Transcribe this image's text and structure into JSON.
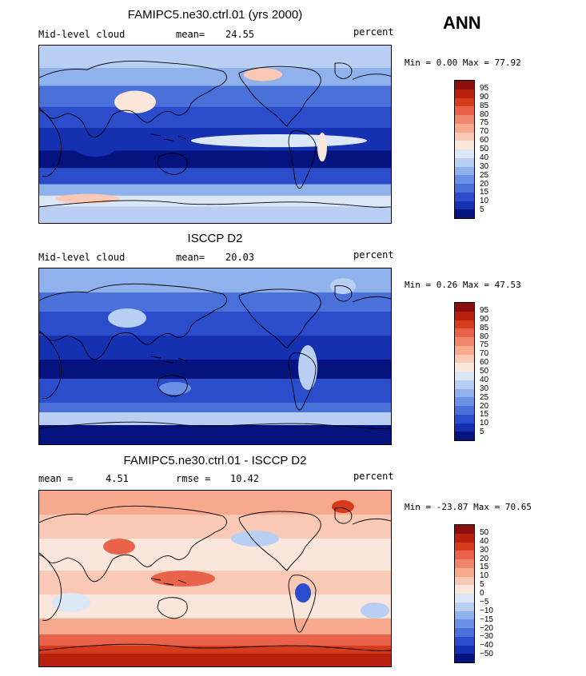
{
  "season": "ANN",
  "panels": [
    {
      "title": "FAMIPC5.ne30.ctrl.01 (yrs 2000)",
      "left_label": "Mid-level cloud",
      "stat_label": "mean=",
      "stat_value": "24.55",
      "unit": "percent",
      "minmax": "Min =    0.00 Max =   77.92",
      "colorbar_labels": [
        "95",
        "90",
        "85",
        "80",
        "75",
        "70",
        "60",
        "50",
        "40",
        "30",
        "25",
        "20",
        "15",
        "10",
        "5"
      ],
      "colorbar_colors": [
        "#8b0d0d",
        "#b8210e",
        "#d63b1c",
        "#e8634a",
        "#f0876a",
        "#f6a98d",
        "#fac9b6",
        "#fbe6dc",
        "#dbe7f7",
        "#b8cff3",
        "#8fb1ec",
        "#6b91e6",
        "#4a70da",
        "#2b4ccb",
        "#1530b0",
        "#04137e"
      ],
      "map_kind": "model"
    },
    {
      "title": "ISCCP D2",
      "left_label": "Mid-level cloud",
      "stat_label": "mean=",
      "stat_value": "20.03",
      "unit": "percent",
      "minmax": "Min =    0.26 Max =   47.53",
      "colorbar_labels": [
        "95",
        "90",
        "85",
        "80",
        "75",
        "70",
        "60",
        "50",
        "40",
        "30",
        "25",
        "20",
        "15",
        "10",
        "5"
      ],
      "colorbar_colors": [
        "#8b0d0d",
        "#b8210e",
        "#d63b1c",
        "#e8634a",
        "#f0876a",
        "#f6a98d",
        "#fac9b6",
        "#fbe6dc",
        "#dbe7f7",
        "#b8cff3",
        "#8fb1ec",
        "#6b91e6",
        "#4a70da",
        "#2b4ccb",
        "#1530b0",
        "#04137e"
      ],
      "map_kind": "obs"
    },
    {
      "title": "FAMIPC5.ne30.ctrl.01 - ISCCP D2",
      "left_label": "mean =",
      "left_value": "4.51",
      "stat_label": "rmse =",
      "stat_value": "10.42",
      "unit": "percent",
      "minmax": "Min =  -23.87 Max =   70.65",
      "colorbar_labels": [
        "50",
        "40",
        "30",
        "20",
        "15",
        "10",
        "5",
        "0",
        "-5",
        "-10",
        "-15",
        "-20",
        "-30",
        "-40",
        "-50"
      ],
      "colorbar_colors": [
        "#8b0d0d",
        "#b8210e",
        "#d63b1c",
        "#e8634a",
        "#f0876a",
        "#f6a98d",
        "#fac9b6",
        "#fbe6dc",
        "#dbe7f7",
        "#b8cff3",
        "#8fb1ec",
        "#6b91e6",
        "#4a70da",
        "#2b4ccb",
        "#1530b0",
        "#04137e"
      ],
      "map_kind": "diff"
    }
  ]
}
